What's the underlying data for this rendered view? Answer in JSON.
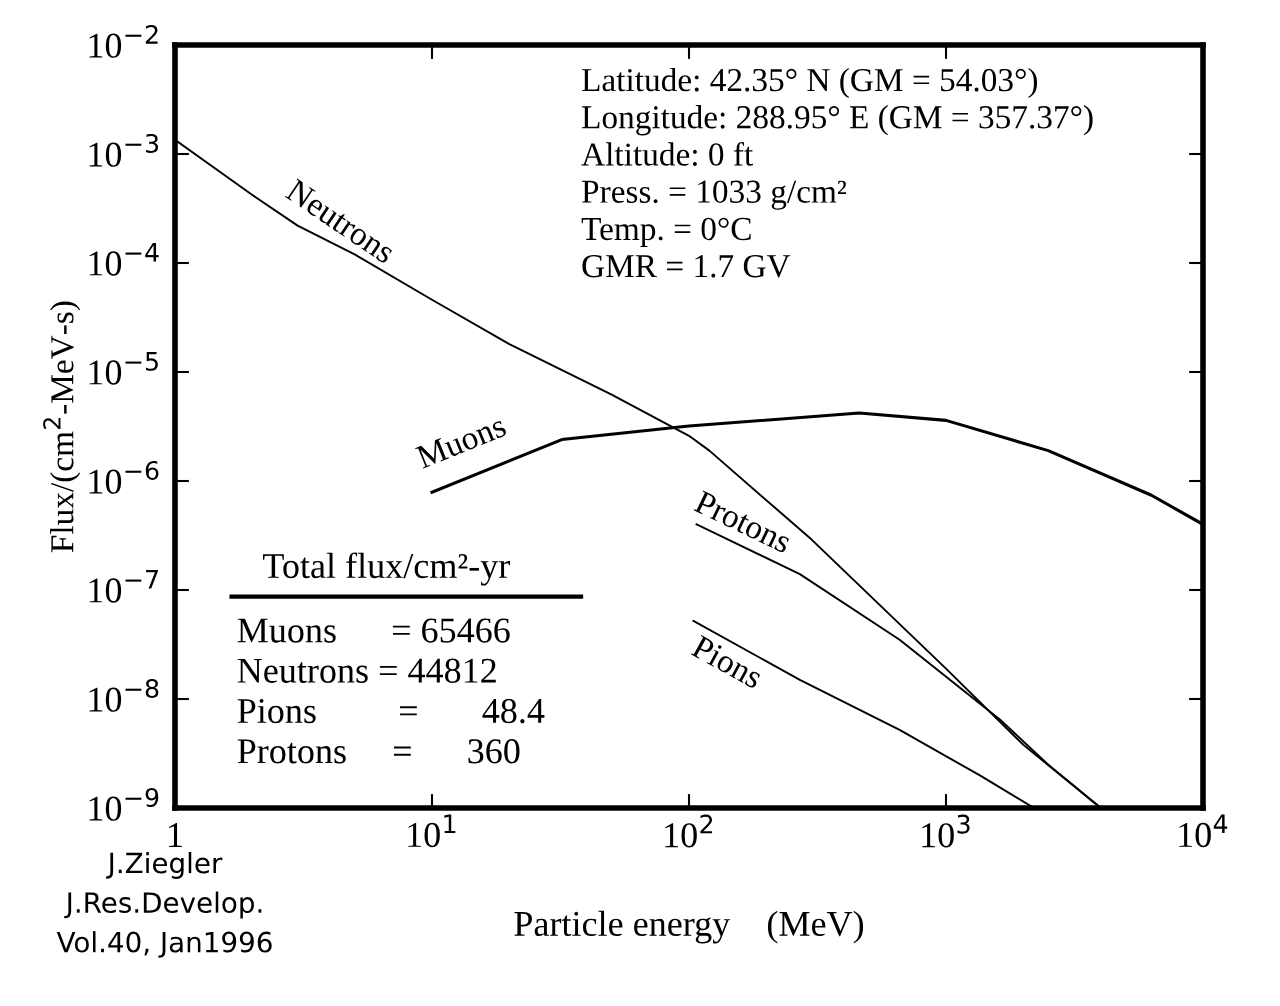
{
  "chart_data": {
    "type": "line",
    "log": "xy",
    "xlabel": "Particle energy    (MeV)",
    "ylabel": "Flux/(cm$^{2}$-MeV-s)",
    "xlim": [
      1,
      10000
    ],
    "ylim": [
      1e-09,
      0.01
    ],
    "xticks": [
      {
        "value": 1,
        "label": "1"
      },
      {
        "value": 10,
        "label": "10$^{1}$"
      },
      {
        "value": 100,
        "label": "10$^{2}$"
      },
      {
        "value": 1000,
        "label": "10$^{3}$"
      },
      {
        "value": 10000,
        "label": "10$^{4}$"
      }
    ],
    "yticks": [
      {
        "value": 1e-09,
        "label": "10$^{−9}$"
      },
      {
        "value": 1e-08,
        "label": "10$^{−8}$"
      },
      {
        "value": 1e-07,
        "label": "10$^{−7}$"
      },
      {
        "value": 1e-06,
        "label": "10$^{−6}$"
      },
      {
        "value": 1e-05,
        "label": "10$^{−5}$"
      },
      {
        "value": 0.0001,
        "label": "10$^{−4}$"
      },
      {
        "value": 0.001,
        "label": "10$^{−3}$"
      },
      {
        "value": 0.01,
        "label": "10$^{−2}$"
      }
    ],
    "grid": false,
    "legend": false,
    "series": [
      {
        "name": "Neutrons",
        "color": "#000000",
        "x": [
          1,
          2,
          3,
          5,
          10,
          20,
          50,
          100,
          120,
          300,
          1000,
          2000,
          4000
        ],
        "values": [
          0.00135,
          0.00042,
          0.00022,
          0.00012,
          4.6e-05,
          1.8e-05,
          6.2e-06,
          2.6e-06,
          1.9e-06,
          2.9e-07,
          1.9e-08,
          3.8e-09,
          1e-09
        ]
      },
      {
        "name": "Muons",
        "color": "#000000",
        "x": [
          10,
          32,
          100,
          460,
          1000,
          2500,
          6300,
          10000
        ],
        "values": [
          7.9e-07,
          2.4e-06,
          3.2e-06,
          4.2e-06,
          3.6e-06,
          1.9e-06,
          7.4e-07,
          4e-07
        ]
      },
      {
        "name": "Protons",
        "color": "#000000",
        "x": [
          107,
          270,
          660,
          1620,
          2500,
          4000
        ],
        "values": [
          4e-07,
          1.4e-07,
          3.5e-08,
          6.5e-09,
          2.5e-09,
          1e-09
        ]
      },
      {
        "name": "Pions",
        "color": "#000000",
        "x": [
          104,
          270,
          660,
          1350,
          2200
        ],
        "values": [
          5.2e-08,
          1.5e-08,
          5.2e-09,
          2e-09,
          1e-09
        ]
      }
    ],
    "annotations": [
      "Latitude: 42.35° N (GM = 54.03°)\nLongitude: 288.95° E (GM = 357.37°)\nAltitude: 0 ft\nPress. = 1033 g/cm²\nTemp. = 0°C\nGMR = 1.7 GV",
      "Total flux/cm²-yr",
      "Muons      = 65466\nNeutrons = 44812\nPions         =       48.4\nProtons     =      360",
      "J.Ziegler\nJ.Res.Develop.\nVol.40, Jan1996"
    ]
  }
}
